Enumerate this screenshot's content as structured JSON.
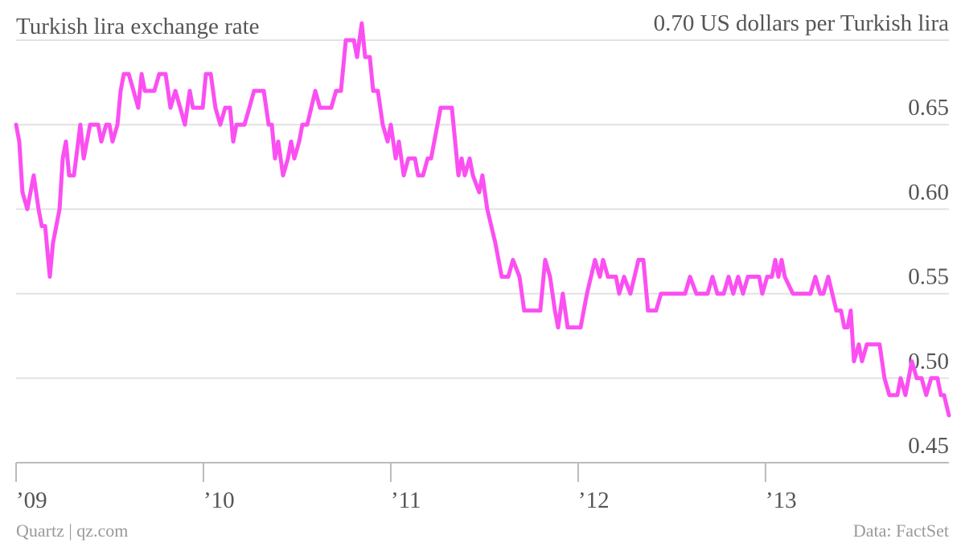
{
  "chart_data": {
    "type": "line",
    "title": "Turkish lira exchange rate",
    "credit": "Quartz | qz.com",
    "source": "Data: FactSet",
    "xlim": [
      2009,
      2013.979
    ],
    "xticks": [
      {
        "value": 2009,
        "label": "’09"
      },
      {
        "value": 2010,
        "label": "’10"
      },
      {
        "value": 2011,
        "label": "’11"
      },
      {
        "value": 2012,
        "label": "’12"
      },
      {
        "value": 2013,
        "label": "’13"
      }
    ],
    "ylim": [
      0.45,
      0.7
    ],
    "yticks": [
      {
        "value": 0.45,
        "label": "0.45"
      },
      {
        "value": 0.5,
        "label": "0.50"
      },
      {
        "value": 0.55,
        "label": "0.55"
      },
      {
        "value": 0.6,
        "label": "0.60"
      },
      {
        "value": 0.65,
        "label": "0.65"
      },
      {
        "value": 0.7,
        "label": "0.70 US dollars per Turkish lira"
      }
    ],
    "grid": true,
    "x": [
      2009.0,
      2009.017,
      2009.034,
      2009.06,
      2009.094,
      2009.12,
      2009.137,
      2009.155,
      2009.18,
      2009.197,
      2009.232,
      2009.249,
      2009.266,
      2009.283,
      2009.309,
      2009.343,
      2009.361,
      2009.395,
      2009.438,
      2009.455,
      2009.481,
      2009.498,
      2009.515,
      2009.541,
      2009.558,
      2009.575,
      2009.601,
      2009.627,
      2009.652,
      2009.67,
      2009.687,
      2009.738,
      2009.764,
      2009.798,
      2009.824,
      2009.85,
      2009.876,
      2009.901,
      2009.927,
      2009.944,
      2009.996,
      2010.013,
      2010.039,
      2010.064,
      2010.09,
      2010.116,
      2010.142,
      2010.159,
      2010.176,
      2010.219,
      2010.245,
      2010.27,
      2010.322,
      2010.348,
      2010.365,
      2010.382,
      2010.399,
      2010.425,
      2010.451,
      2010.468,
      2010.485,
      2010.511,
      2010.528,
      2010.554,
      2010.597,
      2010.622,
      2010.682,
      2010.708,
      2010.734,
      2010.76,
      2010.803,
      2010.82,
      2010.845,
      2010.863,
      2010.888,
      2010.906,
      2010.931,
      2010.957,
      2010.983,
      2011.0,
      2011.026,
      2011.043,
      2011.069,
      2011.094,
      2011.129,
      2011.146,
      2011.172,
      2011.197,
      2011.215,
      2011.266,
      2011.326,
      2011.361,
      2011.378,
      2011.395,
      2011.421,
      2011.438,
      2011.472,
      2011.489,
      2011.515,
      2011.558,
      2011.575,
      2011.592,
      2011.627,
      2011.652,
      2011.687,
      2011.712,
      2011.798,
      2011.824,
      2011.85,
      2011.876,
      2011.893,
      2011.918,
      2011.944,
      2012.013,
      2012.047,
      2012.09,
      2012.116,
      2012.133,
      2012.159,
      2012.202,
      2012.219,
      2012.245,
      2012.279,
      2012.322,
      2012.348,
      2012.373,
      2012.416,
      2012.442,
      2012.571,
      2012.597,
      2012.631,
      2012.691,
      2012.717,
      2012.743,
      2012.777,
      2012.803,
      2012.828,
      2012.854,
      2012.88,
      2012.906,
      2012.966,
      2012.983,
      2013.009,
      2013.034,
      2013.052,
      2013.069,
      2013.086,
      2013.103,
      2013.146,
      2013.24,
      2013.266,
      2013.292,
      2013.309,
      2013.335,
      2013.378,
      2013.403,
      2013.421,
      2013.438,
      2013.455,
      2013.472,
      2013.498,
      2013.515,
      2013.541,
      2013.609,
      2013.635,
      2013.661,
      2013.704,
      2013.721,
      2013.747,
      2013.781,
      2013.807,
      2013.833,
      2013.858,
      2013.884,
      2013.918,
      2013.936,
      2013.953,
      2013.979
    ],
    "series": [
      {
        "name": "Turkish lira",
        "color": "#fb4ff2",
        "values": [
          0.65,
          0.64,
          0.61,
          0.6,
          0.62,
          0.6,
          0.59,
          0.59,
          0.56,
          0.58,
          0.6,
          0.63,
          0.64,
          0.62,
          0.62,
          0.65,
          0.63,
          0.65,
          0.65,
          0.64,
          0.65,
          0.65,
          0.64,
          0.65,
          0.67,
          0.68,
          0.68,
          0.67,
          0.66,
          0.68,
          0.67,
          0.67,
          0.68,
          0.68,
          0.66,
          0.67,
          0.66,
          0.65,
          0.67,
          0.66,
          0.66,
          0.68,
          0.68,
          0.66,
          0.65,
          0.66,
          0.66,
          0.64,
          0.65,
          0.65,
          0.66,
          0.67,
          0.67,
          0.65,
          0.65,
          0.63,
          0.64,
          0.62,
          0.63,
          0.64,
          0.63,
          0.64,
          0.65,
          0.65,
          0.67,
          0.66,
          0.66,
          0.67,
          0.67,
          0.7,
          0.7,
          0.69,
          0.71,
          0.69,
          0.69,
          0.67,
          0.67,
          0.65,
          0.64,
          0.65,
          0.63,
          0.64,
          0.62,
          0.63,
          0.63,
          0.62,
          0.62,
          0.63,
          0.63,
          0.66,
          0.66,
          0.62,
          0.63,
          0.62,
          0.63,
          0.62,
          0.61,
          0.62,
          0.6,
          0.58,
          0.57,
          0.56,
          0.56,
          0.57,
          0.56,
          0.54,
          0.54,
          0.57,
          0.56,
          0.54,
          0.53,
          0.55,
          0.53,
          0.53,
          0.55,
          0.57,
          0.56,
          0.57,
          0.56,
          0.56,
          0.55,
          0.56,
          0.55,
          0.57,
          0.57,
          0.54,
          0.54,
          0.55,
          0.55,
          0.56,
          0.55,
          0.55,
          0.56,
          0.55,
          0.55,
          0.56,
          0.55,
          0.56,
          0.55,
          0.56,
          0.56,
          0.55,
          0.56,
          0.56,
          0.57,
          0.56,
          0.57,
          0.56,
          0.55,
          0.55,
          0.56,
          0.55,
          0.55,
          0.56,
          0.54,
          0.54,
          0.53,
          0.53,
          0.54,
          0.51,
          0.52,
          0.51,
          0.52,
          0.52,
          0.5,
          0.49,
          0.49,
          0.5,
          0.49,
          0.51,
          0.5,
          0.5,
          0.49,
          0.5,
          0.5,
          0.49,
          0.49,
          0.478
        ]
      }
    ]
  }
}
